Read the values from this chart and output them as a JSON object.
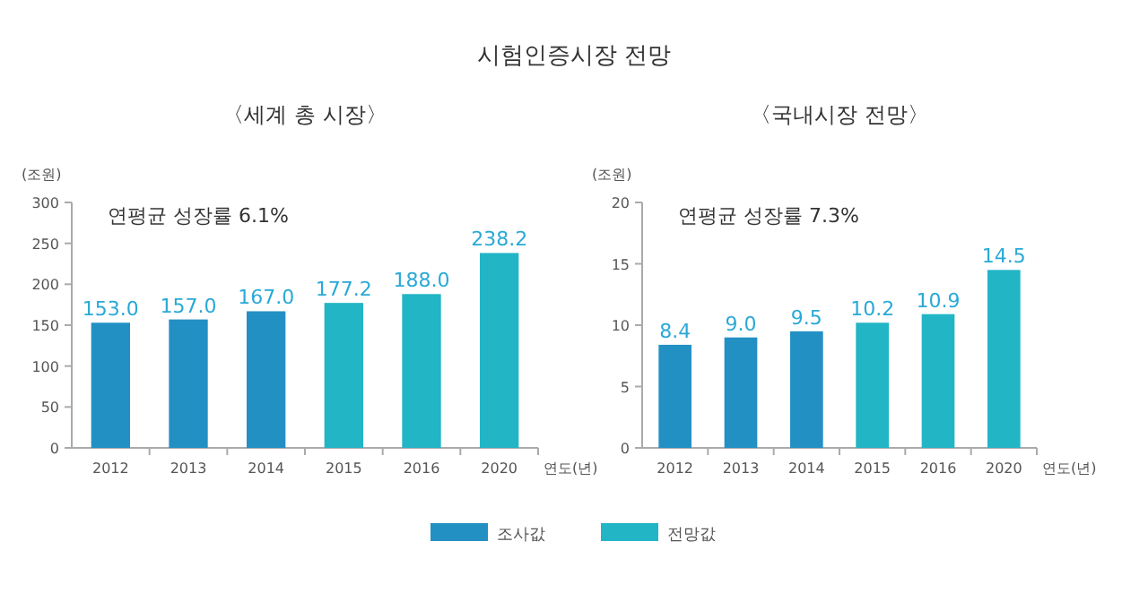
{
  "chart_data": [
    {
      "type": "bar",
      "title": "시험인증시장 전망",
      "subtitle": "〈세계 총 시장〉",
      "ylabel": "(조원)",
      "xlabel": "연도(년)",
      "categories": [
        "2012",
        "2013",
        "2014",
        "2015",
        "2016",
        "2020"
      ],
      "series": [
        {
          "name": "조사값",
          "color": "#2390c4",
          "values": [
            153.0,
            157.0,
            167.0,
            null,
            null,
            null
          ],
          "value_labels": [
            "153.0",
            "157.0",
            "167.0",
            null,
            null,
            null
          ]
        },
        {
          "name": "전망값",
          "color": "#22b5c6",
          "values": [
            null,
            null,
            null,
            177.2,
            188.0,
            238.2
          ],
          "value_labels": [
            null,
            null,
            null,
            "177.2",
            "188.0",
            "238.2"
          ]
        }
      ],
      "ylim": [
        0,
        300
      ],
      "yticks": [
        0,
        50,
        100,
        150,
        200,
        250,
        300
      ],
      "annotations": [
        "연평균 성장률 6.1%"
      ],
      "legend": "bottom",
      "grid": false
    },
    {
      "type": "bar",
      "subtitle": "〈국내시장 전망〉",
      "ylabel": "(조원)",
      "xlabel": "연도(년)",
      "categories": [
        "2012",
        "2013",
        "2014",
        "2015",
        "2016",
        "2020"
      ],
      "series": [
        {
          "color": "#2390c4",
          "values": [
            8.4,
            9.0,
            9.5,
            null,
            null,
            null
          ],
          "value_labels": [
            "8.4",
            "9.0",
            "9.5",
            null,
            null,
            null
          ]
        },
        {
          "color": "#22b5c6",
          "values": [
            null,
            null,
            null,
            10.2,
            10.9,
            14.5
          ],
          "value_labels": [
            null,
            null,
            null,
            "10.2",
            "10.9",
            "14.5"
          ]
        }
      ],
      "ylim": [
        0,
        20
      ],
      "yticks": [
        0,
        5,
        10,
        15,
        20
      ],
      "annotations": [
        "연평균 성장률 7.3%"
      ],
      "legend": "bottom",
      "grid": false
    }
  ]
}
